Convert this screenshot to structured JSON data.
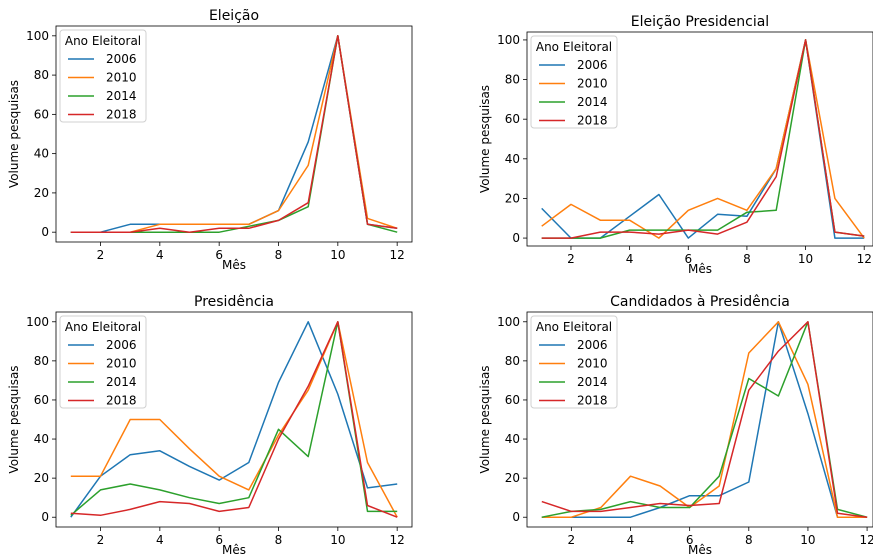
{
  "colors": {
    "2006": "#1f77b4",
    "2010": "#ff7f0e",
    "2014": "#2ca02c",
    "2018": "#d62728"
  },
  "chart_data": [
    {
      "type": "line",
      "title": "Eleição",
      "xlabel": "Mês",
      "ylabel": "Volume pesquisas",
      "xlim": [
        0.5,
        12.5
      ],
      "ylim": [
        -5,
        105
      ],
      "xticks": [
        2,
        4,
        6,
        8,
        10,
        12
      ],
      "yticks": [
        0,
        20,
        40,
        60,
        80,
        100
      ],
      "legend_title": "Ano Eleitoral",
      "legend_position": "top-left",
      "x": [
        1,
        2,
        3,
        4,
        5,
        6,
        7,
        8,
        9,
        10,
        11,
        12
      ],
      "series": [
        {
          "name": "2006",
          "values": [
            0,
            0,
            4,
            4,
            4,
            4,
            4,
            11,
            46,
            100,
            4,
            2
          ]
        },
        {
          "name": "2010",
          "values": [
            0,
            0,
            0,
            4,
            4,
            4,
            4,
            11,
            34,
            100,
            7,
            2
          ]
        },
        {
          "name": "2014",
          "values": [
            0,
            0,
            0,
            0,
            0,
            0,
            3,
            6,
            13,
            100,
            4,
            0
          ]
        },
        {
          "name": "2018",
          "values": [
            0,
            0,
            0,
            2,
            0,
            2,
            2,
            6,
            15,
            100,
            4,
            2
          ]
        }
      ]
    },
    {
      "type": "line",
      "title": "Eleição Presidencial",
      "xlabel": "Mês",
      "ylabel": "Volume pesquisas",
      "xlim": [
        0.5,
        12.3
      ],
      "ylim": [
        -4,
        104
      ],
      "xticks": [
        2,
        4,
        6,
        8,
        10,
        12
      ],
      "yticks": [
        0,
        20,
        40,
        60,
        80,
        100
      ],
      "legend_title": "Ano Eleitoral",
      "legend_position": "top-left",
      "x": [
        1,
        2,
        3,
        4,
        5,
        6,
        7,
        8,
        9,
        10,
        11,
        12
      ],
      "series": [
        {
          "name": "2006",
          "values": [
            15,
            0,
            0,
            11,
            22,
            0,
            12,
            11,
            35,
            100,
            0,
            0
          ]
        },
        {
          "name": "2010",
          "values": [
            6,
            17,
            9,
            9,
            0,
            14,
            20,
            14,
            35,
            100,
            20,
            0
          ]
        },
        {
          "name": "2014",
          "values": [
            0,
            0,
            0,
            4,
            4,
            4,
            4,
            13,
            14,
            100,
            3,
            1
          ]
        },
        {
          "name": "2018",
          "values": [
            0,
            0,
            3,
            3,
            2,
            4,
            2,
            8,
            31,
            100,
            3,
            1
          ]
        }
      ]
    },
    {
      "type": "line",
      "title": "Presidência",
      "xlabel": "Mês",
      "ylabel": "Volume pesquisas",
      "xlim": [
        0.5,
        12.5
      ],
      "ylim": [
        -5,
        105
      ],
      "xticks": [
        2,
        4,
        6,
        8,
        10,
        12
      ],
      "yticks": [
        0,
        20,
        40,
        60,
        80,
        100
      ],
      "legend_title": "Ano Eleitoral",
      "legend_position": "top-left",
      "x": [
        1,
        2,
        3,
        4,
        5,
        6,
        7,
        8,
        9,
        10,
        11,
        12
      ],
      "series": [
        {
          "name": "2006",
          "values": [
            0,
            21,
            32,
            34,
            26,
            19,
            28,
            69,
            100,
            63,
            15,
            17
          ]
        },
        {
          "name": "2010",
          "values": [
            21,
            21,
            50,
            50,
            35,
            21,
            14,
            42,
            65,
            100,
            28,
            0
          ]
        },
        {
          "name": "2014",
          "values": [
            1,
            14,
            17,
            14,
            10,
            7,
            10,
            45,
            31,
            100,
            3,
            3
          ]
        },
        {
          "name": "2018",
          "values": [
            2,
            1,
            4,
            8,
            7,
            3,
            5,
            40,
            67,
            100,
            6,
            0
          ]
        }
      ]
    },
    {
      "type": "line",
      "title": "Candidados à Presidência",
      "xlabel": "Mês",
      "ylabel": "Volume pesquisas",
      "xlim": [
        0.5,
        12.2
      ],
      "ylim": [
        -5,
        105
      ],
      "xticks": [
        2,
        4,
        6,
        8,
        10,
        12
      ],
      "yticks": [
        0,
        20,
        40,
        60,
        80,
        100
      ],
      "legend_title": "Ano Eleitoral",
      "legend_position": "top-left",
      "x": [
        1,
        2,
        3,
        4,
        5,
        6,
        7,
        8,
        9,
        10,
        11,
        12
      ],
      "series": [
        {
          "name": "2006",
          "values": [
            0,
            0,
            0,
            0,
            5,
            11,
            11,
            18,
            100,
            53,
            0,
            0
          ]
        },
        {
          "name": "2010",
          "values": [
            0,
            0,
            5,
            21,
            16,
            5,
            16,
            84,
            100,
            68,
            0,
            0
          ]
        },
        {
          "name": "2014",
          "values": [
            0,
            3,
            4,
            8,
            5,
            5,
            21,
            71,
            62,
            100,
            4,
            0
          ]
        },
        {
          "name": "2018",
          "values": [
            8,
            3,
            3,
            5,
            7,
            6,
            7,
            65,
            85,
            100,
            2,
            0
          ]
        }
      ]
    }
  ]
}
